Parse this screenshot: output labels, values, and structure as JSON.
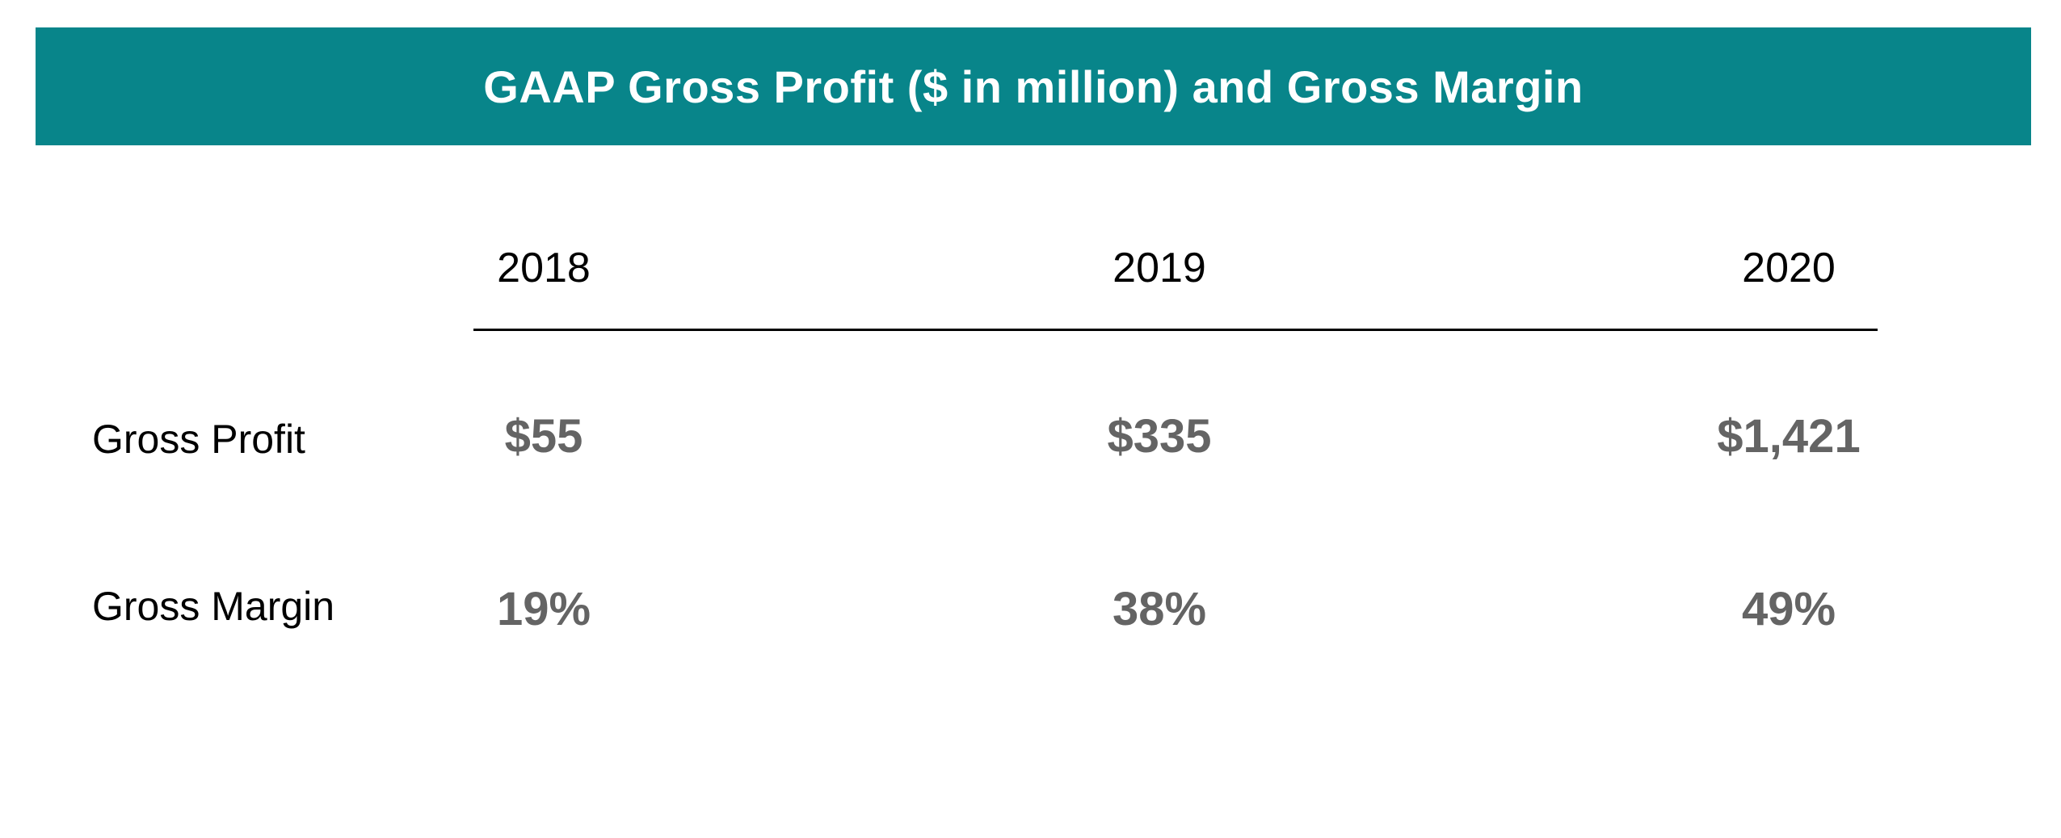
{
  "chart_data": {
    "type": "table",
    "title": "GAAP Gross Profit ($ in million) and Gross Margin",
    "columns": [
      "2018",
      "2019",
      "2020"
    ],
    "rows": [
      {
        "label": "Gross Profit",
        "display": [
          "$55",
          "$335",
          "$1,421"
        ],
        "values": [
          55,
          335,
          1421
        ],
        "unit": "$ in million"
      },
      {
        "label": "Gross Margin",
        "display": [
          "19%",
          "38%",
          "49%"
        ],
        "values": [
          19,
          38,
          49
        ],
        "unit": "%"
      }
    ]
  },
  "colors": {
    "banner_background": "#08858a",
    "banner_text": "#ffffff",
    "header_text": "#000000",
    "value_text": "#646464",
    "rule": "#000000"
  }
}
